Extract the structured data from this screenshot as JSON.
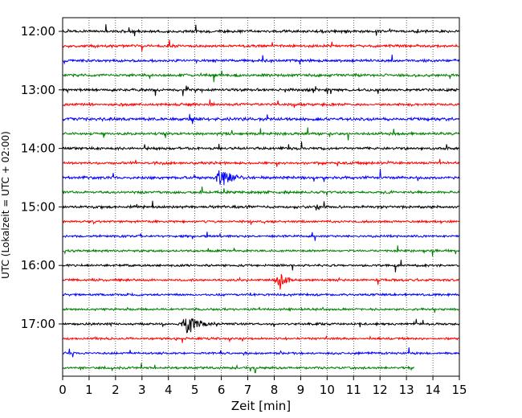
{
  "chart_data": {
    "type": "line",
    "title": "",
    "xlabel": "Zeit  [min]",
    "ylabel": "UTC (Lokalzeit = UTC + 02:00)",
    "xlim": [
      0,
      15
    ],
    "x_ticks": [
      "0",
      "1",
      "2",
      "3",
      "4",
      "5",
      "6",
      "7",
      "8",
      "9",
      "10",
      "11",
      "12",
      "13",
      "14",
      "15"
    ],
    "y_ticks": [
      "12:00",
      "13:00",
      "14:00",
      "15:00",
      "16:00",
      "17:00"
    ],
    "grid": "vertical-dotted",
    "legend": "none",
    "trace_interval_min": 15,
    "trace_colors": [
      "#000000",
      "#ff0000",
      "#0000ff",
      "#008000"
    ],
    "traces": [
      {
        "start": "12:00",
        "color": "#000000",
        "amplitude": 0.3,
        "end_min": 15
      },
      {
        "start": "12:15",
        "color": "#ff0000",
        "amplitude": 0.3,
        "end_min": 15
      },
      {
        "start": "12:30",
        "color": "#0000ff",
        "amplitude": 0.3,
        "end_min": 15
      },
      {
        "start": "12:45",
        "color": "#008000",
        "amplitude": 0.3,
        "end_min": 15
      },
      {
        "start": "13:00",
        "color": "#000000",
        "amplitude": 0.3,
        "end_min": 15
      },
      {
        "start": "13:15",
        "color": "#ff0000",
        "amplitude": 0.3,
        "end_min": 15
      },
      {
        "start": "13:30",
        "color": "#0000ff",
        "amplitude": 0.35,
        "end_min": 15
      },
      {
        "start": "13:45",
        "color": "#008000",
        "amplitude": 0.3,
        "end_min": 15
      },
      {
        "start": "14:00",
        "color": "#000000",
        "amplitude": 0.3,
        "end_min": 15
      },
      {
        "start": "14:15",
        "color": "#ff0000",
        "amplitude": 0.3,
        "end_min": 15
      },
      {
        "start": "14:30",
        "color": "#0000ff",
        "amplitude": 0.3,
        "end_min": 15,
        "events": [
          {
            "t": 6.0,
            "amp": 3.2,
            "dur": 0.6
          }
        ]
      },
      {
        "start": "14:45",
        "color": "#008000",
        "amplitude": 0.3,
        "end_min": 15
      },
      {
        "start": "15:00",
        "color": "#000000",
        "amplitude": 0.3,
        "end_min": 15
      },
      {
        "start": "15:15",
        "color": "#ff0000",
        "amplitude": 0.25,
        "end_min": 15
      },
      {
        "start": "15:30",
        "color": "#0000ff",
        "amplitude": 0.25,
        "end_min": 15
      },
      {
        "start": "15:45",
        "color": "#008000",
        "amplitude": 0.25,
        "end_min": 15
      },
      {
        "start": "16:00",
        "color": "#000000",
        "amplitude": 0.25,
        "end_min": 15
      },
      {
        "start": "16:15",
        "color": "#ff0000",
        "amplitude": 0.25,
        "end_min": 15,
        "events": [
          {
            "t": 8.2,
            "amp": 3.0,
            "dur": 0.5
          }
        ]
      },
      {
        "start": "16:30",
        "color": "#0000ff",
        "amplitude": 0.25,
        "end_min": 15
      },
      {
        "start": "16:45",
        "color": "#008000",
        "amplitude": 0.25,
        "end_min": 15
      },
      {
        "start": "17:00",
        "color": "#000000",
        "amplitude": 0.25,
        "end_min": 15,
        "events": [
          {
            "t": 4.7,
            "amp": 3.0,
            "dur": 0.7
          }
        ]
      },
      {
        "start": "17:15",
        "color": "#ff0000",
        "amplitude": 0.25,
        "end_min": 15
      },
      {
        "start": "17:30",
        "color": "#0000ff",
        "amplitude": 0.25,
        "end_min": 15
      },
      {
        "start": "17:45",
        "color": "#008000",
        "amplitude": 0.25,
        "end_min": 13.3
      }
    ]
  }
}
